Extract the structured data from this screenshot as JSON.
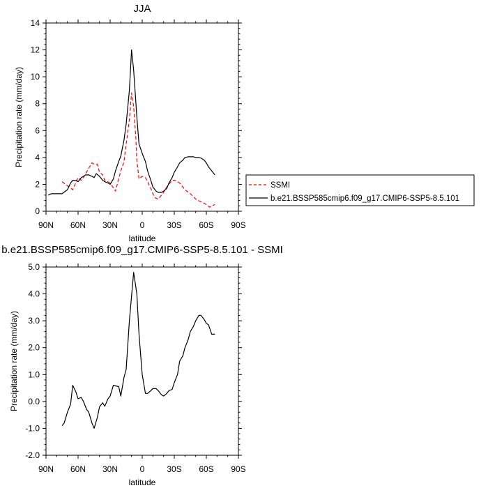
{
  "chart_data": [
    {
      "type": "line",
      "title": "JJA",
      "xlabel": "latitude",
      "ylabel": "Precipitation rate (mm/day)",
      "xlim": [
        90,
        -90
      ],
      "ylim": [
        0,
        14
      ],
      "x_ticks": [
        90,
        60,
        30,
        0,
        -30,
        -60,
        -90
      ],
      "x_tick_labels": [
        "90N",
        "60N",
        "30N",
        "0",
        "30S",
        "60S",
        "90S"
      ],
      "y_ticks": [
        0,
        2,
        4,
        6,
        8,
        10,
        12,
        14
      ],
      "y_tick_labels": [
        "0",
        "2",
        "4",
        "6",
        "8",
        "10",
        "12",
        "14"
      ],
      "grid": false,
      "legend_position": "right",
      "series": [
        {
          "name": "SSMI",
          "color": "#ff0000",
          "dash": "dashed",
          "x": [
            75,
            70,
            65,
            60,
            57,
            55,
            50,
            47,
            45,
            42,
            40,
            37,
            35,
            30,
            25,
            23,
            20,
            17,
            15,
            12,
            10,
            8,
            6,
            5,
            3,
            0,
            -3,
            -5,
            -8,
            -10,
            -12,
            -15,
            -18,
            -20,
            -22,
            -25,
            -28,
            -30,
            -33,
            -35,
            -38,
            -40,
            -45,
            -50,
            -55,
            -60,
            -63,
            -65,
            -68
          ],
          "y": [
            2.2,
            1.9,
            1.6,
            2.5,
            2.3,
            2.5,
            3.2,
            3.6,
            3.5,
            3.5,
            2.9,
            2.7,
            2.3,
            2.1,
            1.5,
            2.1,
            3.0,
            3.7,
            5.0,
            6.8,
            8.8,
            7.8,
            5.5,
            3.8,
            2.4,
            2.6,
            2.5,
            2.2,
            1.7,
            1.3,
            1.0,
            0.9,
            1.2,
            1.4,
            1.7,
            2.0,
            2.3,
            2.3,
            2.2,
            2.1,
            1.8,
            1.6,
            1.3,
            0.9,
            0.7,
            0.5,
            0.3,
            0.4,
            0.5
          ]
        },
        {
          "name": "b.e21.BSSP585cmip6.f09_g17.CMIP6-SSP5-8.5.101",
          "color": "#000000",
          "dash": "solid",
          "x": [
            88,
            85,
            80,
            75,
            70,
            67,
            65,
            62,
            60,
            57,
            55,
            53,
            50,
            47,
            45,
            43,
            40,
            37,
            35,
            32,
            30,
            27,
            25,
            22,
            20,
            17,
            15,
            12,
            10,
            8,
            5,
            3,
            0,
            -3,
            -5,
            -8,
            -10,
            -13,
            -15,
            -18,
            -20,
            -23,
            -25,
            -28,
            -30,
            -33,
            -35,
            -38,
            -40,
            -43,
            -45,
            -48,
            -50,
            -53,
            -55,
            -58,
            -60,
            -62,
            -65,
            -68
          ],
          "y": [
            1.2,
            1.3,
            1.3,
            1.3,
            1.6,
            2.1,
            2.3,
            2.3,
            2.2,
            2.5,
            2.6,
            2.7,
            2.7,
            2.6,
            2.5,
            2.8,
            2.6,
            2.3,
            2.2,
            2.1,
            2.0,
            2.4,
            3.0,
            3.7,
            4.1,
            5.3,
            6.5,
            9.0,
            12.0,
            10.5,
            7.0,
            5.0,
            4.3,
            3.7,
            3.0,
            2.3,
            1.8,
            1.5,
            1.4,
            1.4,
            1.5,
            1.7,
            2.1,
            2.5,
            2.9,
            3.3,
            3.6,
            3.8,
            4.0,
            4.05,
            4.05,
            4.05,
            4.0,
            4.0,
            3.95,
            3.8,
            3.6,
            3.3,
            3.0,
            2.7
          ]
        }
      ]
    },
    {
      "type": "line",
      "title": "b.e21.BSSP585cmip6.f09_g17.CMIP6-SSP5-8.5.101 - SSMI",
      "xlabel": "latitude",
      "ylabel": "Precipitation rate (mm/day)",
      "xlim": [
        90,
        -90
      ],
      "ylim": [
        -2,
        5
      ],
      "x_ticks": [
        90,
        60,
        30,
        0,
        -30,
        -60,
        -90
      ],
      "x_tick_labels": [
        "90N",
        "60N",
        "30N",
        "0",
        "30S",
        "60S",
        "90S"
      ],
      "y_ticks": [
        -2,
        -1,
        0,
        1,
        2,
        3,
        4,
        5
      ],
      "y_tick_labels": [
        "-2.0",
        "-1.0",
        "0.0",
        "1.0",
        "2.0",
        "3.0",
        "4.0",
        "5.0"
      ],
      "grid": false,
      "series": [
        {
          "color": "#000000",
          "dash": "solid",
          "x": [
            75,
            73,
            70,
            67,
            65,
            62,
            60,
            57,
            55,
            52,
            50,
            47,
            45,
            42,
            40,
            37,
            35,
            32,
            30,
            27,
            25,
            22,
            20,
            17,
            15,
            12,
            8,
            5,
            3,
            0,
            -3,
            -5,
            -8,
            -10,
            -13,
            -15,
            -18,
            -20,
            -23,
            -25,
            -28,
            -30,
            -33,
            -35,
            -38,
            -40,
            -43,
            -45,
            -48,
            -50,
            -53,
            -55,
            -58,
            -60,
            -62,
            -65,
            -68
          ],
          "y": [
            -0.9,
            -0.8,
            -0.4,
            -0.1,
            0.6,
            0.35,
            0.1,
            0.15,
            0.0,
            -0.3,
            -0.4,
            -0.8,
            -1.0,
            -0.6,
            -0.2,
            -0.05,
            -0.18,
            0.1,
            0.2,
            0.6,
            0.58,
            0.55,
            0.2,
            0.9,
            1.2,
            3.0,
            4.8,
            4.0,
            2.5,
            1.0,
            0.3,
            0.3,
            0.4,
            0.48,
            0.48,
            0.4,
            0.25,
            0.2,
            0.3,
            0.4,
            0.45,
            0.7,
            1.0,
            1.5,
            1.7,
            2.0,
            2.3,
            2.6,
            2.8,
            3.0,
            3.2,
            3.2,
            3.05,
            2.9,
            2.85,
            2.5,
            2.5
          ]
        }
      ]
    }
  ]
}
